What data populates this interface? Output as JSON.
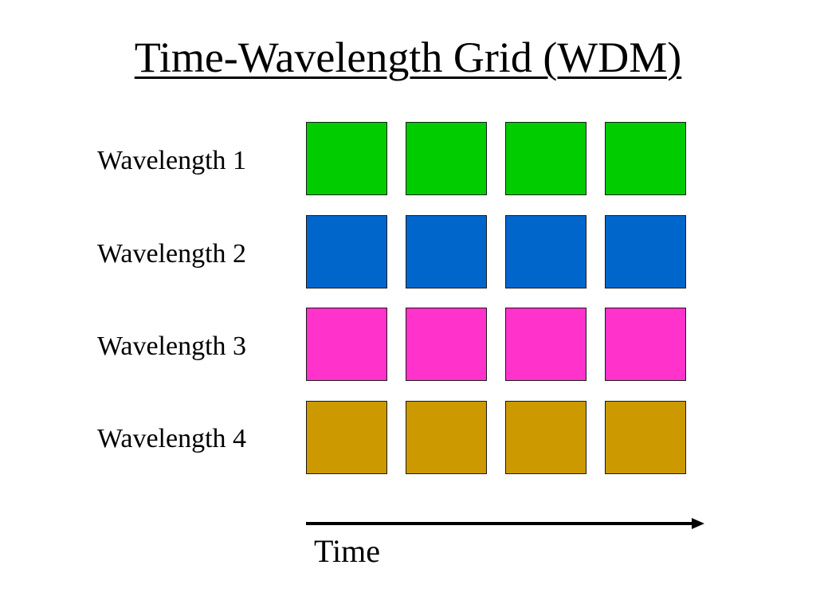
{
  "title": "Time-Wavelength Grid (WDM)",
  "rows": [
    {
      "label": "Wavelength 1",
      "color": "#00cc00",
      "slots": 4
    },
    {
      "label": "Wavelength 2",
      "color": "#0066cc",
      "slots": 4
    },
    {
      "label": "Wavelength 3",
      "color": "#ff33cc",
      "slots": 4
    },
    {
      "label": "Wavelength 4",
      "color": "#cc9900",
      "slots": 4
    }
  ],
  "time_axis": {
    "label": "Time"
  }
}
